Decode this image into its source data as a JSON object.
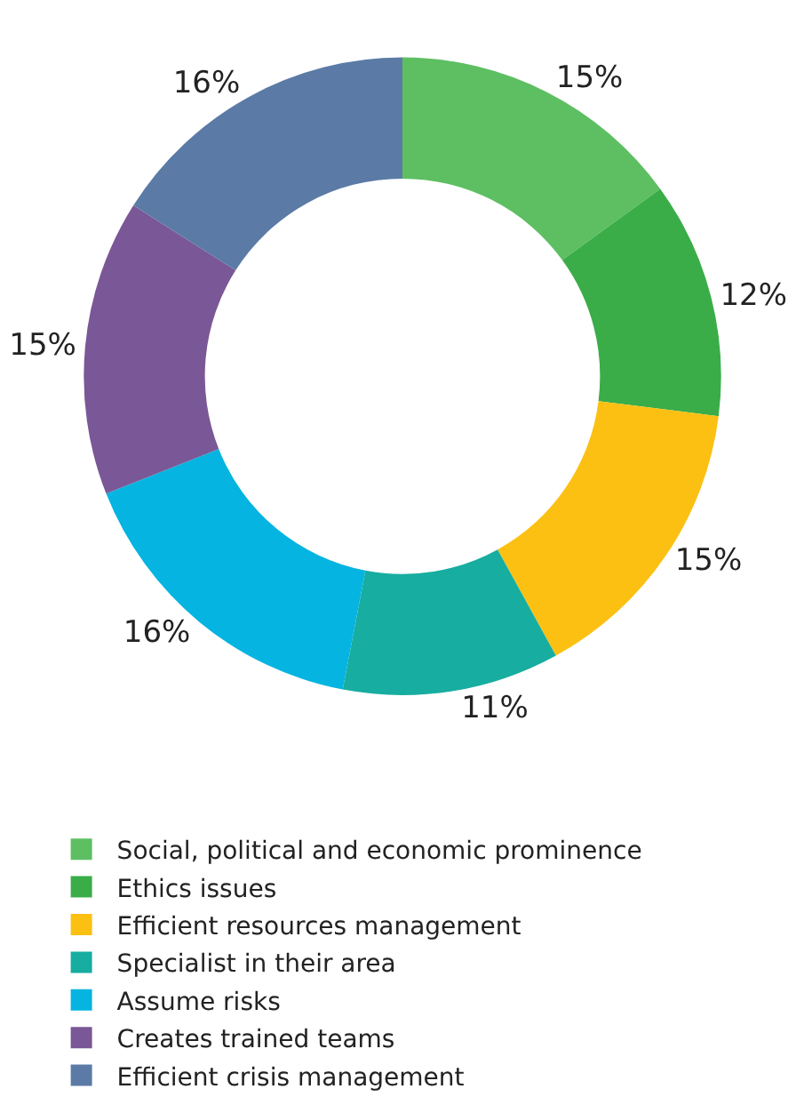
{
  "chart_data": {
    "type": "donut",
    "categories": [
      "Social, political and economic prominence",
      "Ethics issues",
      "Efficient resources management",
      "Specialist in their area",
      "Assume risks",
      "Creates trained teams",
      "Efficient crisis management"
    ],
    "values": [
      15,
      12,
      15,
      11,
      16,
      15,
      16
    ],
    "value_labels": [
      "15%",
      "12%",
      "15%",
      "11%",
      "16%",
      "15%",
      "16%"
    ],
    "colors": [
      "#5dbf62",
      "#3aad48",
      "#fcc013",
      "#17ada0",
      "#05b4e0",
      "#7a5796",
      "#5b7ba6"
    ],
    "legend": "bottom"
  }
}
